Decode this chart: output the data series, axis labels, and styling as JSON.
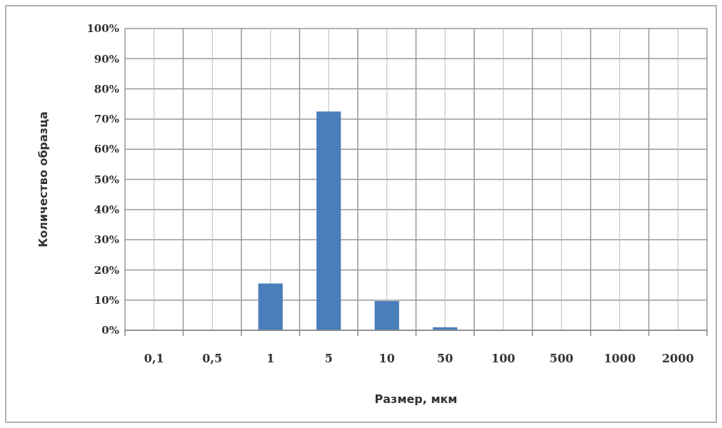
{
  "chart_data": {
    "type": "bar",
    "xlabel": "Размер, мкм",
    "ylabel": "Количество образца",
    "categories": [
      "0,1",
      "0,5",
      "1",
      "5",
      "10",
      "50",
      "100",
      "500",
      "1000",
      "2000"
    ],
    "values": [
      0,
      0,
      15.5,
      72.5,
      9.7,
      1,
      0,
      0,
      0,
      0
    ],
    "color": "#4a7ebb",
    "ylim": [
      0,
      100
    ],
    "yticks": [
      {
        "value": 0,
        "label": "0%"
      },
      {
        "value": 10,
        "label": "10%"
      },
      {
        "value": 20,
        "label": "20%"
      },
      {
        "value": 30,
        "label": "30%"
      },
      {
        "value": 40,
        "label": "40%"
      },
      {
        "value": 50,
        "label": "50%"
      },
      {
        "value": 60,
        "label": "60%"
      },
      {
        "value": 70,
        "label": "70%"
      },
      {
        "value": 80,
        "label": "80%"
      },
      {
        "value": 90,
        "label": "90%"
      },
      {
        "value": 100,
        "label": "100%"
      }
    ],
    "grid": true
  }
}
